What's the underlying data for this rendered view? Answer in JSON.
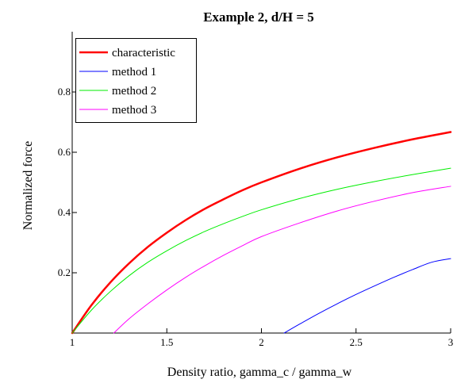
{
  "chart_data": {
    "type": "line",
    "title": "Example 2, d/H = 5",
    "xlabel": "Density ratio, gamma_c / gamma_w",
    "ylabel": "Normalized force",
    "xlim": [
      1,
      3
    ],
    "ylim": [
      0,
      1
    ],
    "x_ticks": [
      1,
      1.5,
      2,
      2.5,
      3
    ],
    "x_tick_labels": [
      "1",
      "1.5",
      "2",
      "2.5",
      "3"
    ],
    "y_ticks": [
      0.2,
      0.4,
      0.6,
      0.8
    ],
    "y_tick_labels": [
      "0.2",
      "0.4",
      "0.6",
      "0.8"
    ],
    "grid": false,
    "legend_position": "top-left",
    "series": [
      {
        "name": "characteristic",
        "color": "#ff0000",
        "bold": true,
        "x": [
          1,
          1.1,
          1.2,
          1.3,
          1.4,
          1.5,
          1.6,
          1.7,
          1.8,
          1.9,
          2,
          2.2,
          2.4,
          2.6,
          2.8,
          3
        ],
        "y": [
          0,
          0.091,
          0.167,
          0.231,
          0.286,
          0.333,
          0.375,
          0.412,
          0.444,
          0.474,
          0.5,
          0.545,
          0.583,
          0.615,
          0.643,
          0.667
        ]
      },
      {
        "name": "method 1",
        "color": "#0000ff",
        "bold": false,
        "x": [
          2.12,
          2.2,
          2.3,
          2.4,
          2.5,
          2.6,
          2.7,
          2.8,
          2.9,
          3
        ],
        "y": [
          0,
          0.029,
          0.064,
          0.097,
          0.128,
          0.157,
          0.185,
          0.211,
          0.235,
          0.247
        ]
      },
      {
        "name": "method 2",
        "color": "#00ee00",
        "bold": false,
        "x": [
          1,
          1.1,
          1.2,
          1.3,
          1.4,
          1.5,
          1.6,
          1.7,
          1.8,
          1.9,
          2,
          2.2,
          2.4,
          2.6,
          2.8,
          3
        ],
        "y": [
          0,
          0.075,
          0.137,
          0.19,
          0.235,
          0.273,
          0.307,
          0.337,
          0.363,
          0.387,
          0.409,
          0.446,
          0.477,
          0.503,
          0.526,
          0.547
        ]
      },
      {
        "name": "method 3",
        "color": "#ff00ff",
        "bold": false,
        "x": [
          1.22,
          1.3,
          1.4,
          1.5,
          1.6,
          1.7,
          1.8,
          1.9,
          2,
          2.2,
          2.4,
          2.6,
          2.8,
          3
        ],
        "y": [
          0,
          0.047,
          0.097,
          0.143,
          0.185,
          0.223,
          0.258,
          0.29,
          0.32,
          0.365,
          0.405,
          0.438,
          0.466,
          0.487
        ]
      }
    ]
  }
}
